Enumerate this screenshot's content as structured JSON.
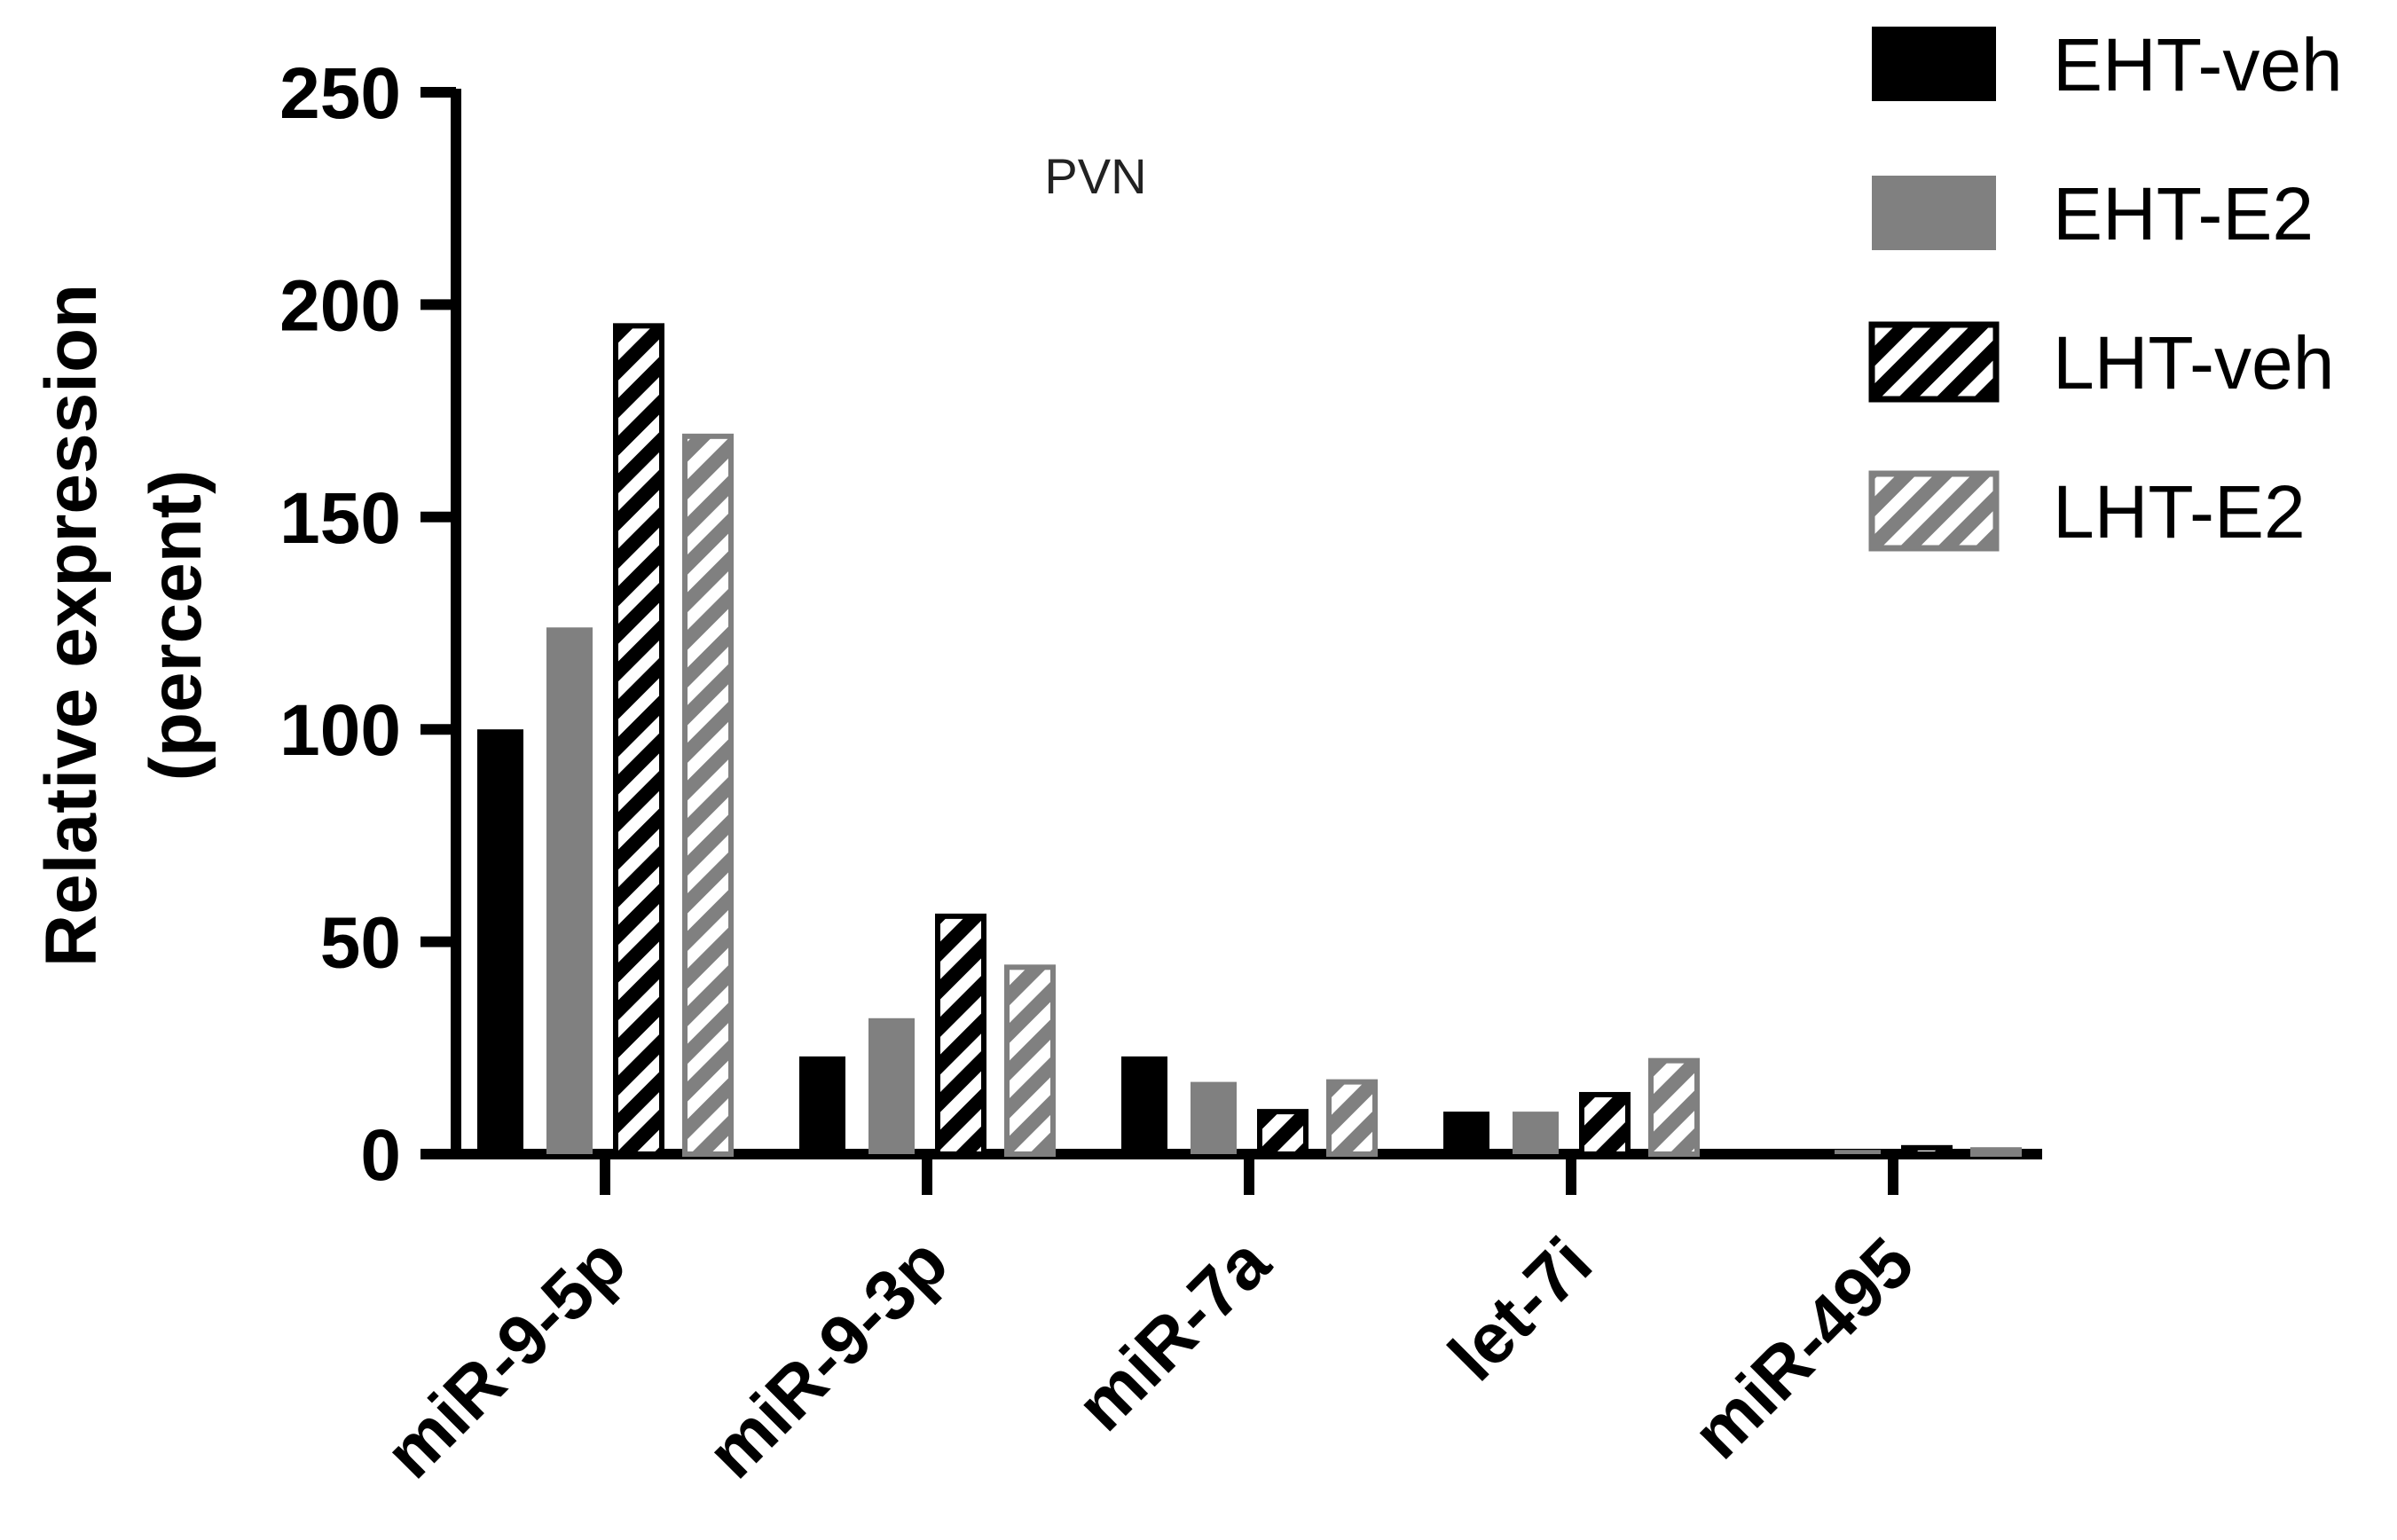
{
  "chart_data": {
    "type": "bar",
    "title": "PVN",
    "ylabel_lines": [
      "Relative expression",
      "(percent)"
    ],
    "xlabel": "",
    "ylim": [
      0,
      250
    ],
    "yticks": [
      0,
      50,
      100,
      150,
      200,
      250
    ],
    "categories": [
      "miR-9-5p",
      "miR-9-3p",
      "miR-7a",
      "let-7i",
      "miR-495"
    ],
    "series": [
      {
        "name": "EHT-veh",
        "values": [
          100,
          23,
          23,
          10,
          0.5
        ],
        "color": "#000000",
        "pattern": "solid"
      },
      {
        "name": "EHT-E2",
        "values": [
          124,
          32,
          17,
          10,
          1
        ],
        "color": "#808080",
        "pattern": "solid"
      },
      {
        "name": "LHT-veh",
        "values": [
          195,
          56,
          10,
          14,
          1.5
        ],
        "color": "#000000",
        "pattern": "hatched"
      },
      {
        "name": "LHT-E2",
        "values": [
          169,
          44,
          17,
          22,
          1
        ],
        "color": "#808080",
        "pattern": "hatched"
      }
    ],
    "legend_position": "top-right",
    "grid": false
  }
}
